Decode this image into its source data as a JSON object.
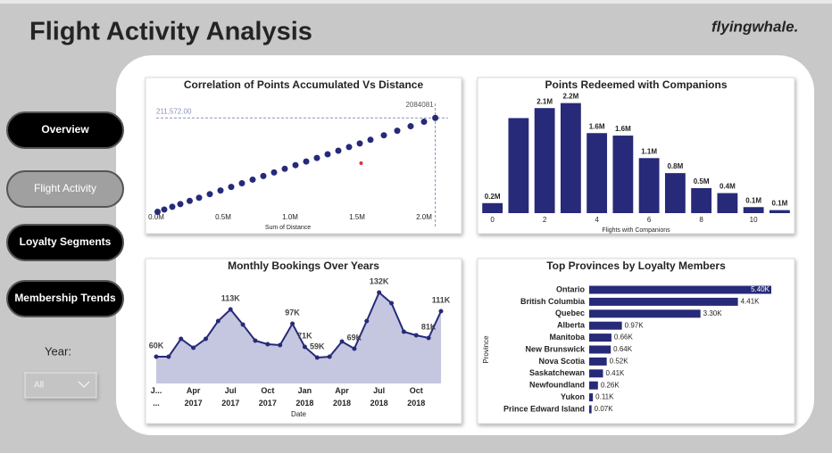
{
  "header": {
    "title": "Flight Activity Analysis",
    "logo": "flyingwhale."
  },
  "nav": [
    "Overview",
    "Flight Activity",
    "Loyalty Segments",
    "Membership Trends"
  ],
  "active_nav": 1,
  "filter": {
    "label": "Year:",
    "value": "All"
  },
  "chart_data": [
    {
      "type": "scatter",
      "title": "Correlation of Points Accumulated Vs Distance",
      "x_label": "Sum of Distance",
      "color": "#262a78",
      "x": [
        10000,
        60000,
        120000,
        180000,
        250000,
        320000,
        400000,
        480000,
        560000,
        640000,
        720000,
        800000,
        880000,
        960000,
        1040000,
        1120000,
        1200000,
        1280000,
        1360000,
        1440000,
        1520000,
        1600000,
        1700000,
        1800000,
        1900000,
        2000000,
        2084081
      ],
      "values": [
        1000,
        6100,
        12200,
        18300,
        25400,
        32500,
        40600,
        48700,
        56800,
        65000,
        73100,
        81200,
        89300,
        97400,
        105600,
        113700,
        121800,
        130000,
        138000,
        146200,
        154300,
        162400,
        172600,
        182700,
        192900,
        203000,
        211572
      ],
      "outlier": {
        "x": 1530000,
        "y": 110000,
        "color": "#e03030"
      },
      "reference_lines": [
        {
          "axis": "y",
          "value": 211572,
          "label": "211,572.00"
        },
        {
          "axis": "x",
          "value": 2084081,
          "label": "2084081"
        }
      ],
      "xlim": [
        0,
        2100000
      ],
      "ylim": [
        0,
        220000
      ],
      "xticks": [
        {
          "value": 0,
          "label": "0.0M"
        },
        {
          "value": 500000,
          "label": "0.5M"
        },
        {
          "value": 1000000,
          "label": "1.0M"
        },
        {
          "value": 1500000,
          "label": "1.5M"
        },
        {
          "value": 2000000,
          "label": "2.0M"
        }
      ]
    },
    {
      "type": "bar",
      "title": "Points Redeemed with Companions",
      "x_label": "Flights with Companions",
      "color": "#262a78",
      "x": [
        0,
        1,
        2,
        3,
        4,
        5,
        6,
        7,
        8,
        9,
        10,
        11
      ],
      "values": [
        200000,
        1900000,
        2100000,
        2200000,
        1600000,
        1550000,
        1100000,
        800000,
        500000,
        400000,
        120000,
        60000
      ],
      "value_labels": [
        "0.2M",
        null,
        "2.1M",
        "2.2M",
        "1.6M",
        "1.6M",
        "1.1M",
        "0.8M",
        "0.5M",
        "0.4M",
        "0.1M",
        "0.1M"
      ],
      "xlim": [
        -0.5,
        11.5
      ],
      "xticks": [
        0,
        2,
        4,
        6,
        8,
        10
      ],
      "ylim": [
        0,
        2300000
      ]
    },
    {
      "type": "area",
      "title": "Monthly Bookings Over Years",
      "x_label": "Date",
      "color": "#262a78",
      "fill": "#c5c7e0",
      "x": [
        "2017-01",
        "2017-02",
        "2017-03",
        "2017-04",
        "2017-05",
        "2017-06",
        "2017-07",
        "2017-08",
        "2017-09",
        "2017-10",
        "2017-11",
        "2017-12",
        "2018-01",
        "2018-02",
        "2018-03",
        "2018-04",
        "2018-05",
        "2018-06",
        "2018-07",
        "2018-08",
        "2018-09",
        "2018-10",
        "2018-11",
        "2018-12"
      ],
      "values": [
        60000,
        60000,
        80000,
        70000,
        80000,
        100000,
        113000,
        96000,
        78000,
        74000,
        73000,
        97000,
        71000,
        59000,
        60000,
        77000,
        69000,
        100000,
        132000,
        120000,
        88000,
        84000,
        81000,
        111000
      ],
      "value_labels": [
        "60K",
        null,
        null,
        null,
        null,
        null,
        "113K",
        null,
        null,
        null,
        null,
        "97K",
        "71K",
        "59K",
        null,
        null,
        "69K",
        null,
        "132K",
        null,
        null,
        null,
        "81K",
        "111K"
      ],
      "ylim": [
        30000,
        140000
      ],
      "xticks": [
        {
          "value": "2017-01",
          "label": "J... ..."
        },
        {
          "value": "2017-04",
          "label": "Apr 2017"
        },
        {
          "value": "2017-07",
          "label": "Jul 2017"
        },
        {
          "value": "2017-10",
          "label": "Oct 2017"
        },
        {
          "value": "2018-01",
          "label": "Jan 2018"
        },
        {
          "value": "2018-04",
          "label": "Apr 2018"
        },
        {
          "value": "2018-07",
          "label": "Jul 2018"
        },
        {
          "value": "2018-10",
          "label": "Oct 2018"
        }
      ]
    },
    {
      "type": "barh",
      "title": "Top Provinces by Loyalty Members",
      "y_label": "Province",
      "color": "#262a78",
      "categories": [
        "Ontario",
        "British Columbia",
        "Quebec",
        "Alberta",
        "Manitoba",
        "New Brunswick",
        "Nova Scotia",
        "Saskatchewan",
        "Newfoundland",
        "Yukon",
        "Prince Edward Island"
      ],
      "values": [
        5400,
        4410,
        3300,
        970,
        660,
        640,
        520,
        410,
        260,
        110,
        70
      ],
      "value_labels": [
        "5.40K",
        "4.41K",
        "3.30K",
        "0.97K",
        "0.66K",
        "0.64K",
        "0.52K",
        "0.41K",
        "0.26K",
        "0.11K",
        "0.07K"
      ],
      "xlim": [
        0,
        5400
      ]
    }
  ]
}
